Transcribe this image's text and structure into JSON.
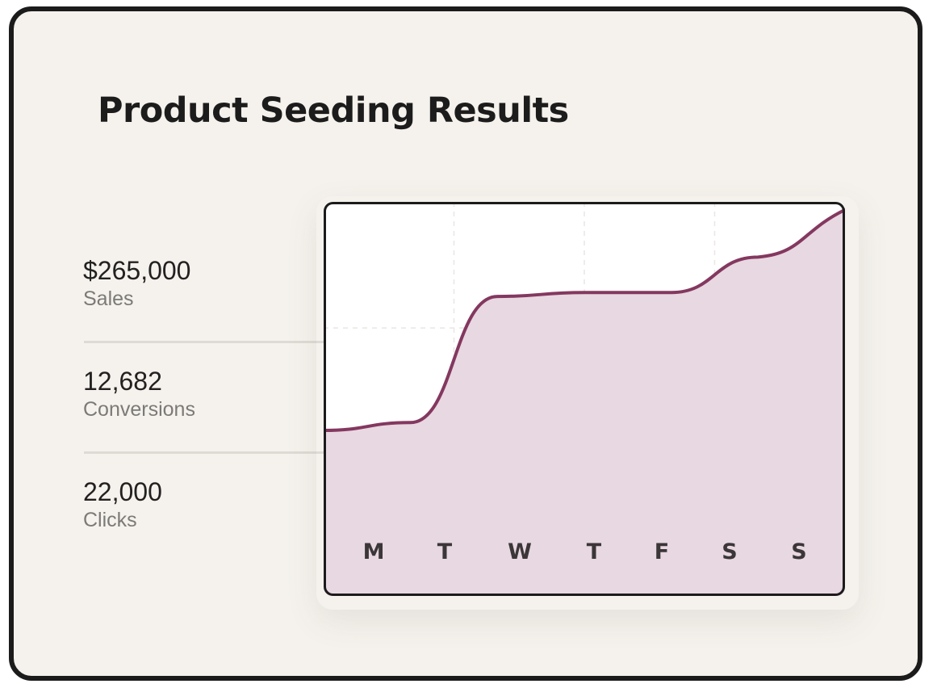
{
  "card": {
    "title": "Product Seeding Results"
  },
  "metrics": [
    {
      "value": "$265,000",
      "label": "Sales"
    },
    {
      "value": "12,682",
      "label": "Conversions"
    },
    {
      "value": "22,000",
      "label": "Clicks"
    }
  ],
  "colors": {
    "line": "#84385f",
    "fill": "#e8d8e1",
    "plot_background": "#ffffff",
    "card_background": "#f5f2ed",
    "border": "#1c1b1b",
    "grid": "#e9e6e2"
  },
  "chart_data": {
    "type": "area",
    "categories": [
      "M",
      "T",
      "W",
      "T",
      "F",
      "S",
      "S"
    ],
    "values": [
      42,
      44,
      76,
      77,
      77,
      86,
      98
    ],
    "ylim": [
      0,
      100
    ],
    "title": "",
    "xlabel": "",
    "ylabel": "",
    "grid": true,
    "legend": "none",
    "curve": "smooth"
  }
}
